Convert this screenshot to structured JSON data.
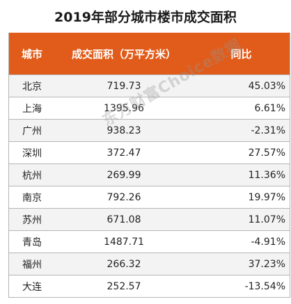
{
  "title": "2019年部分城市楼市成交面积",
  "watermark": "东方财富Choice数据",
  "table": {
    "headers": [
      "城市",
      "成交面积（万平方米）",
      "同比"
    ],
    "rows": [
      [
        "北京",
        "719.73",
        "45.03%"
      ],
      [
        "上海",
        "1395.96",
        "6.61%"
      ],
      [
        "广州",
        "938.23",
        "-2.31%"
      ],
      [
        "深圳",
        "372.47",
        "27.57%"
      ],
      [
        "杭州",
        "269.99",
        "11.36%"
      ],
      [
        "南京",
        "792.26",
        "19.97%"
      ],
      [
        "苏州",
        "671.08",
        "11.07%"
      ],
      [
        "青岛",
        "1487.71",
        "-4.91%"
      ],
      [
        "福州",
        "266.32",
        "37.23%"
      ],
      [
        "大连",
        "252.57",
        "-13.54%"
      ]
    ]
  },
  "colors": {
    "header_bg": "#e15c1b",
    "header_text": "#ffffff",
    "stripe": "#f3f3f3"
  },
  "chart_data": {
    "type": "table",
    "title": "2019年部分城市楼市成交面积",
    "categories": [
      "北京",
      "上海",
      "广州",
      "深圳",
      "杭州",
      "南京",
      "苏州",
      "青岛",
      "福州",
      "大连"
    ],
    "series": [
      {
        "name": "成交面积（万平方米）",
        "values": [
          719.73,
          1395.96,
          938.23,
          372.47,
          269.99,
          792.26,
          671.08,
          1487.71,
          266.32,
          252.57
        ]
      },
      {
        "name": "同比",
        "values": [
          45.03,
          6.61,
          -2.31,
          27.57,
          11.36,
          19.97,
          11.07,
          -4.91,
          37.23,
          -13.54
        ]
      }
    ]
  }
}
